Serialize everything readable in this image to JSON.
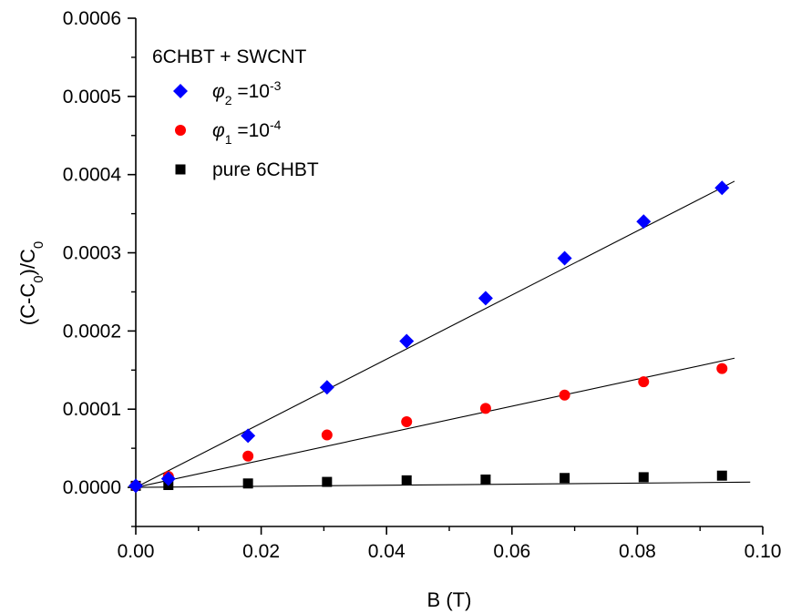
{
  "chart_data": {
    "type": "scatter",
    "title": "",
    "xlabel": "B (T)",
    "ylabel": "(C-C0)/C0",
    "xlim": [
      0.0,
      0.1
    ],
    "ylim": [
      -5e-05,
      0.0006
    ],
    "x_ticks": [
      "0.00",
      "0.02",
      "0.04",
      "0.06",
      "0.08",
      "0.10"
    ],
    "y_ticks": [
      "0.0000",
      "0.0001",
      "0.0002",
      "0.0003",
      "0.0004",
      "0.0005",
      "0.0006"
    ],
    "grid": false,
    "legend": {
      "placement": "top-left",
      "title": "6CHBT + SWCNT"
    },
    "series": [
      {
        "name": "φ2 =10-3",
        "label_main": "φ",
        "label_sub": "2",
        "label_eq": " =10",
        "label_sup": "-3",
        "marker": "diamond",
        "color": "#0000ff",
        "x": [
          0.0,
          0.0052,
          0.0179,
          0.0305,
          0.0432,
          0.0558,
          0.0684,
          0.081,
          0.0935
        ],
        "y": [
          2e-06,
          1.1e-05,
          6.6e-05,
          0.000128,
          0.000187,
          0.000242,
          0.000293,
          0.00034,
          0.000383
        ],
        "fit": {
          "slope": 0.0041,
          "intercept": 0.0,
          "x_end": 0.0955
        }
      },
      {
        "name": "φ1 =10-4",
        "label_main": "φ",
        "label_sub": "1",
        "label_eq": " =10",
        "label_sup": "-4",
        "marker": "circle",
        "color": "#ff0000",
        "x": [
          0.0,
          0.0052,
          0.0179,
          0.0305,
          0.0432,
          0.0558,
          0.0684,
          0.081,
          0.0935
        ],
        "y": [
          2e-06,
          1.4e-05,
          4e-05,
          6.7e-05,
          8.4e-05,
          0.000101,
          0.000118,
          0.000135,
          0.000152
        ],
        "fit": {
          "slope": 0.00173,
          "intercept": 0.0,
          "x_end": 0.0955
        }
      },
      {
        "name": "pure 6CHBT",
        "label_main": "pure 6CHBT",
        "label_sub": "",
        "label_eq": "",
        "label_sup": "",
        "marker": "square",
        "color": "#000000",
        "x": [
          0.0,
          0.0052,
          0.0179,
          0.0305,
          0.0432,
          0.0558,
          0.0684,
          0.081,
          0.0935
        ],
        "y": [
          2e-06,
          3e-06,
          5e-06,
          7e-06,
          9e-06,
          1e-05,
          1.2e-05,
          1.3e-05,
          1.5e-05
        ],
        "fit": {
          "slope": 6.8e-05,
          "intercept": 0.0,
          "x_end": 0.098
        }
      }
    ]
  }
}
